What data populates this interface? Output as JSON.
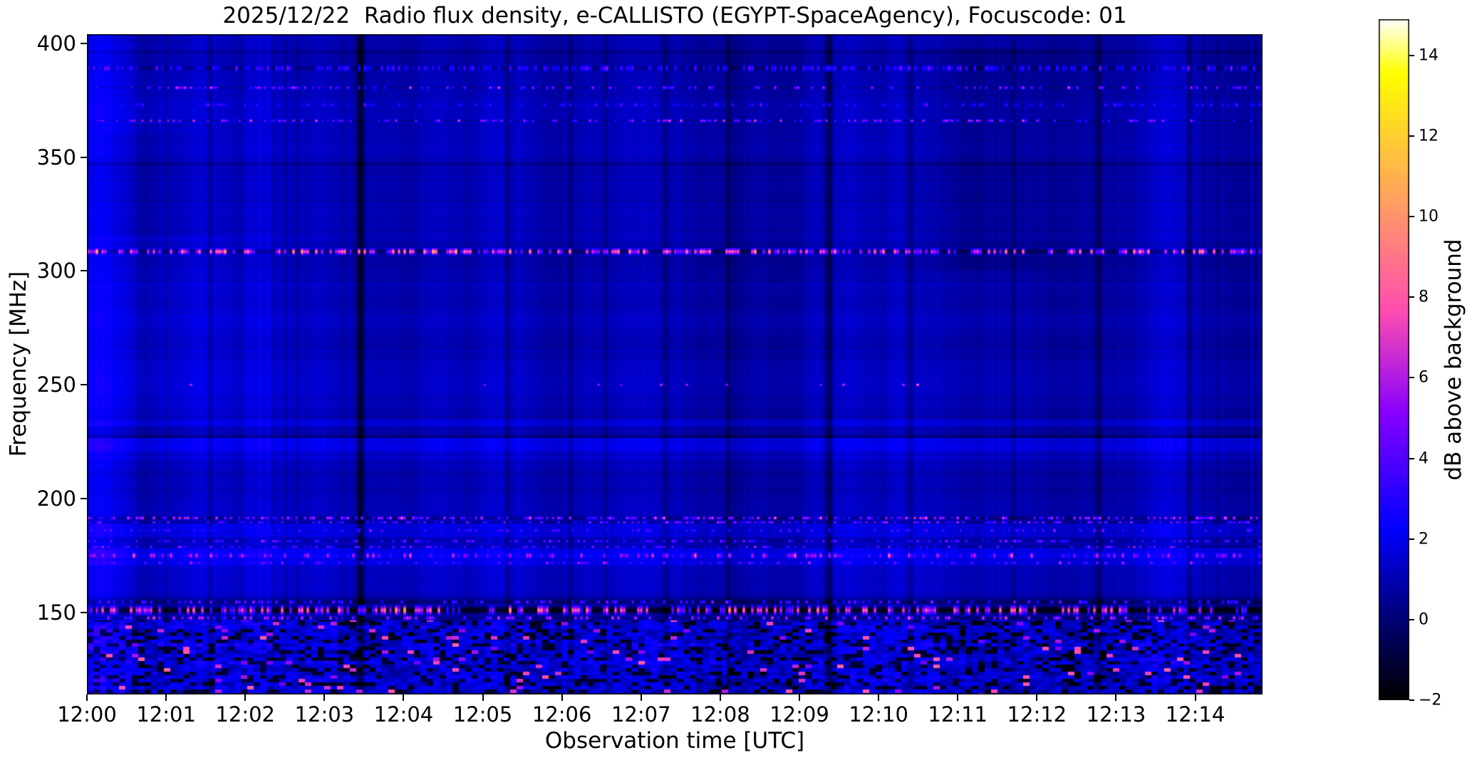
{
  "chart_data": {
    "type": "heatmap",
    "title": "2025/12/22  Radio flux density, e-CALLISTO (EGYPT-SpaceAgency), Focuscode: 01",
    "xlabel": "Observation time [UTC]",
    "ylabel": "Frequency [MHz]",
    "colorbar_label": "dB above background",
    "colormap": "gnuplot2",
    "grid": false,
    "x_ticks": [
      {
        "label": "12:00",
        "minute": 0
      },
      {
        "label": "12:01",
        "minute": 1
      },
      {
        "label": "12:02",
        "minute": 2
      },
      {
        "label": "12:03",
        "minute": 3
      },
      {
        "label": "12:04",
        "minute": 4
      },
      {
        "label": "12:05",
        "minute": 5
      },
      {
        "label": "12:06",
        "minute": 6
      },
      {
        "label": "12:07",
        "minute": 7
      },
      {
        "label": "12:08",
        "minute": 8
      },
      {
        "label": "12:09",
        "minute": 9
      },
      {
        "label": "12:10",
        "minute": 10
      },
      {
        "label": "12:11",
        "minute": 11
      },
      {
        "label": "12:12",
        "minute": 12
      },
      {
        "label": "12:13",
        "minute": 13
      },
      {
        "label": "12:14",
        "minute": 14
      }
    ],
    "time_span_minutes": 14.85,
    "y_ticks": [
      400,
      350,
      300,
      250,
      200,
      150
    ],
    "freq_range_mhz": [
      114,
      404
    ],
    "value_range_db": [
      -2,
      14.9
    ],
    "colorbar_ticks": [
      {
        "label": "14",
        "value": 14
      },
      {
        "label": "12",
        "value": 12
      },
      {
        "label": "10",
        "value": 10
      },
      {
        "label": "8",
        "value": 8
      },
      {
        "label": "6",
        "value": 6
      },
      {
        "label": "4",
        "value": 4
      },
      {
        "label": "2",
        "value": 2
      },
      {
        "label": "0",
        "value": 0
      },
      {
        "label": "−2",
        "value": -2
      }
    ],
    "render": {
      "seed": 20251222,
      "base_level": 0.95,
      "bands": [
        {
          "lo": 391,
          "hi": 404,
          "d": -0.1
        },
        {
          "lo": 231.5,
          "hi": 235,
          "d": 0.7
        },
        {
          "lo": 221,
          "hi": 226.5,
          "d": 0.95
        },
        {
          "lo": 217,
          "hi": 221,
          "d": 0.45
        },
        {
          "lo": 196,
          "hi": 217,
          "d": 0.15
        },
        {
          "lo": 183,
          "hi": 189,
          "d": 0.5
        },
        {
          "lo": 170.5,
          "hi": 178,
          "d": 0.8
        },
        {
          "lo": 157,
          "hi": 170.5,
          "d": 0.3
        },
        {
          "lo": 153.5,
          "hi": 157,
          "d": -0.35
        }
      ],
      "dark_rows": [
        {
          "f": 396,
          "d": -0.45
        },
        {
          "f": 347,
          "d": -0.7
        },
        {
          "f": 331,
          "d": -0.3
        },
        {
          "f": 318,
          "d": -0.25
        },
        {
          "f": 296,
          "d": -0.35
        },
        {
          "f": 262,
          "d": -0.25
        },
        {
          "f": 244,
          "d": -0.25
        },
        {
          "f": 227.3,
          "d": -0.9
        },
        {
          "f": 211,
          "d": -0.3
        },
        {
          "f": 204,
          "d": -0.3
        }
      ],
      "columns": [
        {
          "t": 3.45,
          "w": 0.07,
          "d": -2.3
        },
        {
          "t": 1.55,
          "w": 0.05,
          "d": -1.1
        },
        {
          "t": 5.32,
          "w": 0.05,
          "d": -0.9
        },
        {
          "t": 6.1,
          "w": 0.04,
          "d": -0.8
        },
        {
          "t": 7.3,
          "w": 0.05,
          "d": -1.0
        },
        {
          "t": 8.1,
          "w": 0.05,
          "d": -1.1
        },
        {
          "t": 9.37,
          "w": 0.07,
          "d": -1.8
        },
        {
          "t": 10.4,
          "w": 0.05,
          "d": -1.0
        },
        {
          "t": 12.78,
          "w": 0.06,
          "d": -1.2
        },
        {
          "t": 13.92,
          "w": 0.05,
          "d": -0.9
        },
        {
          "t": 2.35,
          "w": 0.04,
          "d": -0.7
        },
        {
          "t": 4.1,
          "w": 0.03,
          "d": -0.6
        },
        {
          "t": 6.55,
          "w": 0.03,
          "d": -0.6
        },
        {
          "t": 11.7,
          "w": 0.04,
          "d": -0.8
        },
        {
          "t": 14.1,
          "w": 0.04,
          "d": -0.6
        },
        {
          "t": 5.75,
          "w": 0.9,
          "d": -0.25
        },
        {
          "t": 8.55,
          "w": 0.7,
          "d": -0.3
        },
        {
          "t": 11.25,
          "w": 0.7,
          "d": -0.35
        },
        {
          "t": 12.35,
          "w": 0.6,
          "d": -0.4
        },
        {
          "t": 14.55,
          "w": 0.5,
          "d": -0.35
        },
        {
          "t": 13.15,
          "w": 0.35,
          "d": -0.3
        },
        {
          "t": 0.12,
          "w": 0.5,
          "d": 1.0
        },
        {
          "t": 2.0,
          "w": 1.1,
          "d": 0.25
        },
        {
          "t": 4.55,
          "w": 0.8,
          "d": 0.2
        },
        {
          "t": 9.9,
          "w": 0.9,
          "d": 0.15
        },
        {
          "t": 13.55,
          "w": 0.45,
          "d": 0.2
        },
        {
          "t": 7.0,
          "w": 0.5,
          "d": 0.15
        }
      ],
      "patches": [
        {
          "t": 0.9,
          "w": 2.4,
          "lo": 235,
          "hi": 315,
          "d": 0.3
        },
        {
          "t": 0.5,
          "w": 1.0,
          "lo": 360,
          "hi": 400,
          "d": 0.25
        },
        {
          "t": 11.3,
          "w": 1.1,
          "lo": 300,
          "hi": 398,
          "d": -0.35
        }
      ],
      "lanes": [
        {
          "f": 389,
          "hw": 1.7,
          "prob": 0.5,
          "lo": 2.6,
          "hi": 4.6,
          "lane": -0.9
        },
        {
          "f": 380.5,
          "hw": 0.9,
          "prob": 0.3,
          "lo": 3,
          "hi": 7,
          "lane": -0.55
        },
        {
          "f": 373,
          "hw": 1.2,
          "prob": 0.28,
          "lo": 2.6,
          "hi": 4.2,
          "lane": -0.2
        },
        {
          "f": 366,
          "hw": 0.9,
          "prob": 0.33,
          "lo": 3,
          "hi": 6.5,
          "lane": -0.5
        },
        {
          "f": 308.5,
          "hw": 1.6,
          "prob": 0.45,
          "lo": 4.5,
          "hi": 10.5,
          "lane": -1.25
        },
        {
          "f": 250,
          "hw": 0.8,
          "prob": 0.03,
          "lo": 5,
          "hi": 8,
          "lane": 0
        },
        {
          "f": 191.5,
          "hw": 0.9,
          "prob": 0.5,
          "lo": 3,
          "hi": 8,
          "lane": -1.35
        },
        {
          "f": 189.6,
          "hw": 0.7,
          "prob": 0.4,
          "lo": 3,
          "hi": 6.5,
          "lane": -0.9
        },
        {
          "f": 186,
          "hw": 1.2,
          "prob": 0.28,
          "lo": 2.6,
          "hi": 5,
          "lane": 0
        },
        {
          "f": 181.3,
          "hw": 0.8,
          "prob": 0.32,
          "lo": 3,
          "hi": 6,
          "lane": -0.7
        },
        {
          "f": 178.8,
          "hw": 0.7,
          "prob": 0.3,
          "lo": 3,
          "hi": 6,
          "lane": -0.45
        },
        {
          "f": 175,
          "hw": 1.7,
          "prob": 0.32,
          "lo": 3.5,
          "hi": 7.5,
          "lane": 0.3
        },
        {
          "f": 171.8,
          "hw": 1.0,
          "prob": 0.25,
          "lo": 3,
          "hi": 6,
          "lane": 0
        },
        {
          "f": 154.6,
          "hw": 1.0,
          "prob": 0.28,
          "lo": 3,
          "hi": 6,
          "lane": -1.0
        },
        {
          "f": 151,
          "hw": 2.3,
          "prob": 0.42,
          "lo": 4,
          "hi": 9.6,
          "lane": -2.6
        },
        {
          "f": 147.6,
          "hw": 1.2,
          "prob": 0.3,
          "lo": 3.5,
          "hi": 8,
          "lane": -0.7
        }
      ],
      "hatch": {
        "lo": 157,
        "hi": 170.5,
        "amp": 0.4
      },
      "mottle": {
        "f_hi": 146.5,
        "bw": 9,
        "bh": 5,
        "dark_prob": 0.22,
        "lo": 0.35,
        "hi": 2.3,
        "sp_prob": 0.035,
        "sp_lo": 4.5,
        "sp_hi": 8.5,
        "bright_rows": [
          {
            "f": 143.5,
            "d": 0.5
          },
          {
            "f": 136,
            "d": 0.45
          },
          {
            "f": 128.5,
            "d": 0.5
          },
          {
            "f": 120.5,
            "d": 0.35
          }
        ]
      }
    }
  }
}
